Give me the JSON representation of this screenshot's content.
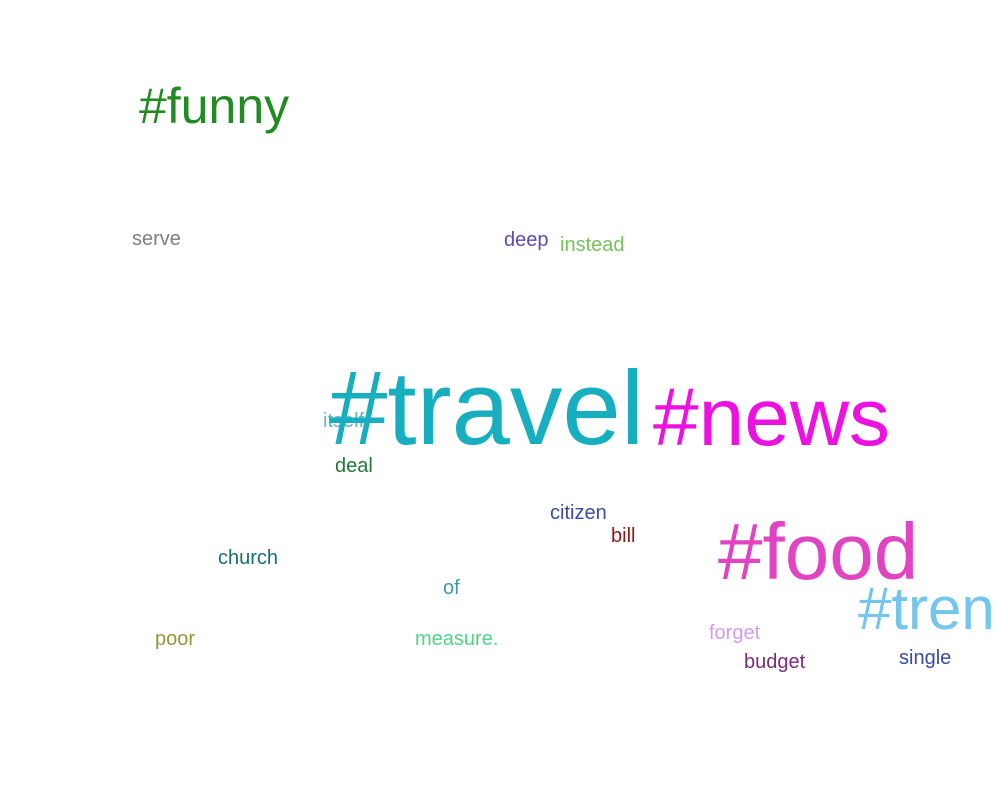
{
  "word_cloud": {
    "words": [
      {
        "key": "funny",
        "text": "#funny",
        "color": "#228B22"
      },
      {
        "key": "serve",
        "text": "serve",
        "color": "#7F7F7F"
      },
      {
        "key": "deep",
        "text": "deep",
        "color": "#5B4BB7"
      },
      {
        "key": "instead",
        "text": "instead",
        "color": "#77C15A"
      },
      {
        "key": "travel",
        "text": "#travel",
        "color": "#17AFBF"
      },
      {
        "key": "news",
        "text": "#news",
        "color": "#EC10E1"
      },
      {
        "key": "itself",
        "text": "itself",
        "color": "#5FB5BE"
      },
      {
        "key": "deal",
        "text": "deal",
        "color": "#1E7A3C"
      },
      {
        "key": "citizen",
        "text": "citizen",
        "color": "#3C4AA8"
      },
      {
        "key": "bill",
        "text": "bill",
        "color": "#8B1A1A"
      },
      {
        "key": "food",
        "text": "#food",
        "color": "#E044C2"
      },
      {
        "key": "church",
        "text": "church",
        "color": "#17706E"
      },
      {
        "key": "of",
        "text": "of",
        "color": "#3D9AA8"
      },
      {
        "key": "tren",
        "text": "#tren",
        "color": "#74C6EE"
      },
      {
        "key": "poor",
        "text": "poor",
        "color": "#8E9A3A"
      },
      {
        "key": "measure",
        "text": "measure.",
        "color": "#4FD48A"
      },
      {
        "key": "forget",
        "text": "forget",
        "color": "#D39CF0"
      },
      {
        "key": "budget",
        "text": "budget",
        "color": "#7D2A7F"
      },
      {
        "key": "single",
        "text": "single",
        "color": "#3A49A8"
      }
    ]
  }
}
